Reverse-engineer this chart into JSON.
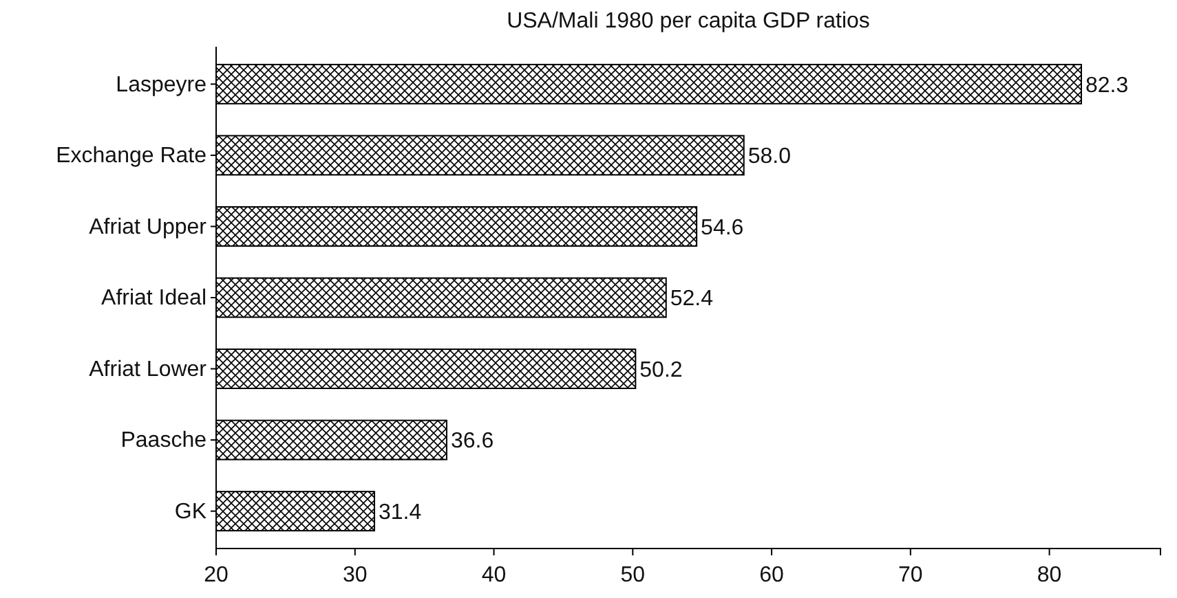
{
  "chart_data": {
    "type": "bar",
    "orientation": "horizontal",
    "title": "USA/Mali 1980 per capita GDP ratios",
    "categories": [
      "Laspeyre",
      "Exchange Rate",
      "Afriat Upper",
      "Afriat Ideal",
      "Afriat Lower",
      "Paasche",
      "GK"
    ],
    "values": [
      82.3,
      58.0,
      54.6,
      52.4,
      50.2,
      36.6,
      31.4
    ],
    "value_labels": [
      "82.3",
      "58.0",
      "54.6",
      "52.4",
      "50.2",
      "36.6",
      "31.4"
    ],
    "color": "#000000",
    "xlim": [
      20,
      88
    ],
    "xticks": [
      20,
      30,
      40,
      50,
      60,
      70,
      80
    ],
    "grid": false
  }
}
